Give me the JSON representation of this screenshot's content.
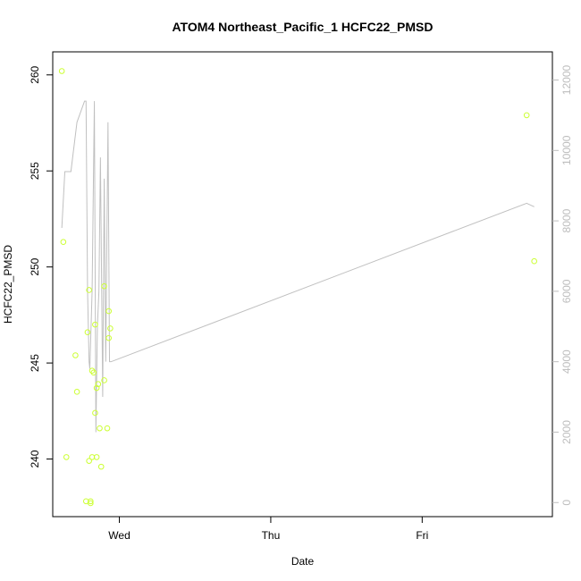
{
  "chart_data": {
    "type": "scatter",
    "title": "ATOM4 Northeast_Pacific_1 HCFC22_PMSD",
    "xlabel": "Date",
    "ylabel": "HCFC22_PMSD",
    "x_axis": {
      "type": "time",
      "ticks": [
        {
          "label": "Wed",
          "value": 1.0
        },
        {
          "label": "Thu",
          "value": 2.0
        },
        {
          "label": "Fri",
          "value": 3.0
        }
      ],
      "range": [
        0.56,
        3.86
      ]
    },
    "y_left": {
      "range": [
        237.0,
        261.2
      ],
      "ticks": [
        240,
        245,
        250,
        255,
        260
      ],
      "tick_labels": [
        "240",
        "245",
        "250",
        "255",
        "260"
      ]
    },
    "y_right": {
      "range": [
        -400,
        12800
      ],
      "ticks": [
        0,
        2000,
        4000,
        6000,
        8000,
        10000,
        12000
      ],
      "tick_labels": [
        "0",
        "2000",
        "4000",
        "6000",
        "8000",
        "10000",
        "12000"
      ],
      "color": "#bdbdbd"
    },
    "points_color": "#ccff33",
    "line_color": "#c0c0c0",
    "series": [
      {
        "type": "scatter",
        "axis": "left",
        "x": [
          0.62,
          0.63,
          0.65,
          0.71,
          0.72,
          0.79,
          0.8,
          0.82,
          0.8,
          0.81,
          0.83,
          0.84,
          0.84,
          0.85,
          0.86,
          0.85,
          0.87,
          0.88,
          0.9,
          0.9,
          0.92,
          0.93,
          0.93,
          0.94,
          0.78,
          0.81,
          0.82,
          3.69,
          3.74
        ],
        "y": [
          260.2,
          251.3,
          240.1,
          245.4,
          243.5,
          246.6,
          248.8,
          244.6,
          239.9,
          237.8,
          244.5,
          242.4,
          247.0,
          243.7,
          243.9,
          240.1,
          241.6,
          239.6,
          249.0,
          244.1,
          241.6,
          246.3,
          247.7,
          246.8,
          237.8,
          237.7,
          240.1,
          257.9,
          250.3
        ]
      },
      {
        "type": "line",
        "axis": "right",
        "x": [
          0.62,
          0.64,
          0.68,
          0.72,
          0.77,
          0.78,
          0.79,
          0.8,
          0.805,
          0.82,
          0.835,
          0.845,
          0.855,
          0.865,
          0.875,
          0.89,
          0.9,
          0.91,
          0.925,
          0.935,
          0.945,
          3.69,
          3.74
        ],
        "y": [
          7800,
          9400,
          9400,
          10800,
          11400,
          11400,
          6000,
          4000,
          3800,
          6000,
          11400,
          2000,
          5000,
          6000,
          9800,
          3000,
          9200,
          4000,
          10800,
          4000,
          4000,
          8500,
          8400
        ]
      }
    ]
  }
}
